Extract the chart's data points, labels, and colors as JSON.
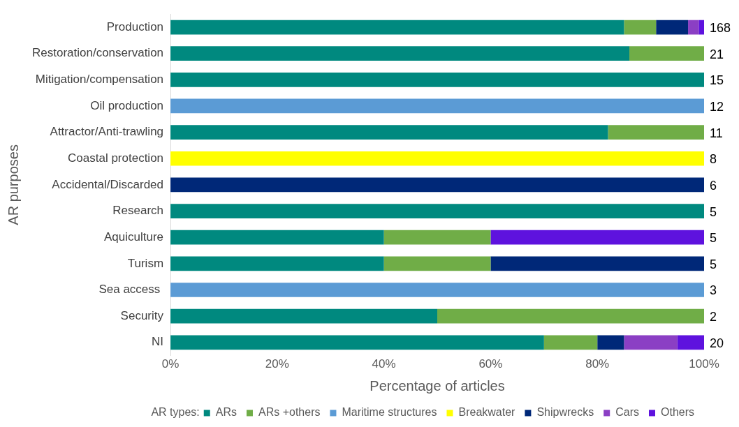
{
  "chart_data": {
    "type": "bar",
    "orientation": "horizontal",
    "stacked": true,
    "xlabel": "Percentage of articles",
    "ylabel": "AR purposes",
    "legend_title": "AR types:",
    "legend": "bottom",
    "grid": false,
    "categories": [
      "Production",
      "Restoration/conservation",
      "Mitigation/compensation",
      "Oil production",
      "Attractor/Anti-trawling",
      "Coastal protection",
      "Accidental/Discarded",
      "Research",
      "Aquiculture",
      "Turism",
      "Sea access ",
      "Security",
      "NI"
    ],
    "xlim": [
      0,
      100
    ],
    "xticks": [
      {
        "value": 0,
        "label": "0%"
      },
      {
        "value": 20,
        "label": "20%"
      },
      {
        "value": 40,
        "label": "40%"
      },
      {
        "value": 60,
        "label": "60%"
      },
      {
        "value": 80,
        "label": "80%"
      },
      {
        "value": 100,
        "label": "100%"
      }
    ],
    "series": [
      {
        "name": "ARs",
        "color": "#00897f",
        "values": [
          85,
          86,
          100,
          0,
          82,
          0,
          0,
          100,
          40,
          40,
          0,
          50,
          70
        ]
      },
      {
        "name": "ARs +others",
        "color": "#70ad47",
        "values": [
          6,
          14,
          0,
          0,
          18,
          0,
          0,
          0,
          20,
          20,
          0,
          50,
          10
        ]
      },
      {
        "name": "Maritime structures",
        "color": "#5b9bd5",
        "values": [
          0,
          0,
          0,
          100,
          0,
          0,
          0,
          0,
          0,
          0,
          100,
          0,
          0
        ]
      },
      {
        "name": "Breakwater",
        "color": "#ffff00",
        "values": [
          0,
          0,
          0,
          0,
          0,
          100,
          0,
          0,
          0,
          0,
          0,
          0,
          0
        ]
      },
      {
        "name": "Shipwrecks",
        "color": "#002878",
        "values": [
          6,
          0,
          0,
          0,
          0,
          0,
          100,
          0,
          0,
          40,
          0,
          0,
          5
        ]
      },
      {
        "name": "Cars",
        "color": "#8b3fc4",
        "values": [
          2,
          0,
          0,
          0,
          0,
          0,
          0,
          0,
          0,
          0,
          0,
          0,
          10
        ]
      },
      {
        "name": "Others",
        "color": "#5e12de",
        "values": [
          1,
          0,
          0,
          0,
          0,
          0,
          0,
          0,
          40,
          0,
          0,
          0,
          5
        ]
      }
    ],
    "annotations": [
      "168",
      "21",
      "15",
      "12",
      "11",
      "8",
      "6",
      "5",
      "5",
      "5",
      "3",
      "2",
      "20"
    ]
  }
}
